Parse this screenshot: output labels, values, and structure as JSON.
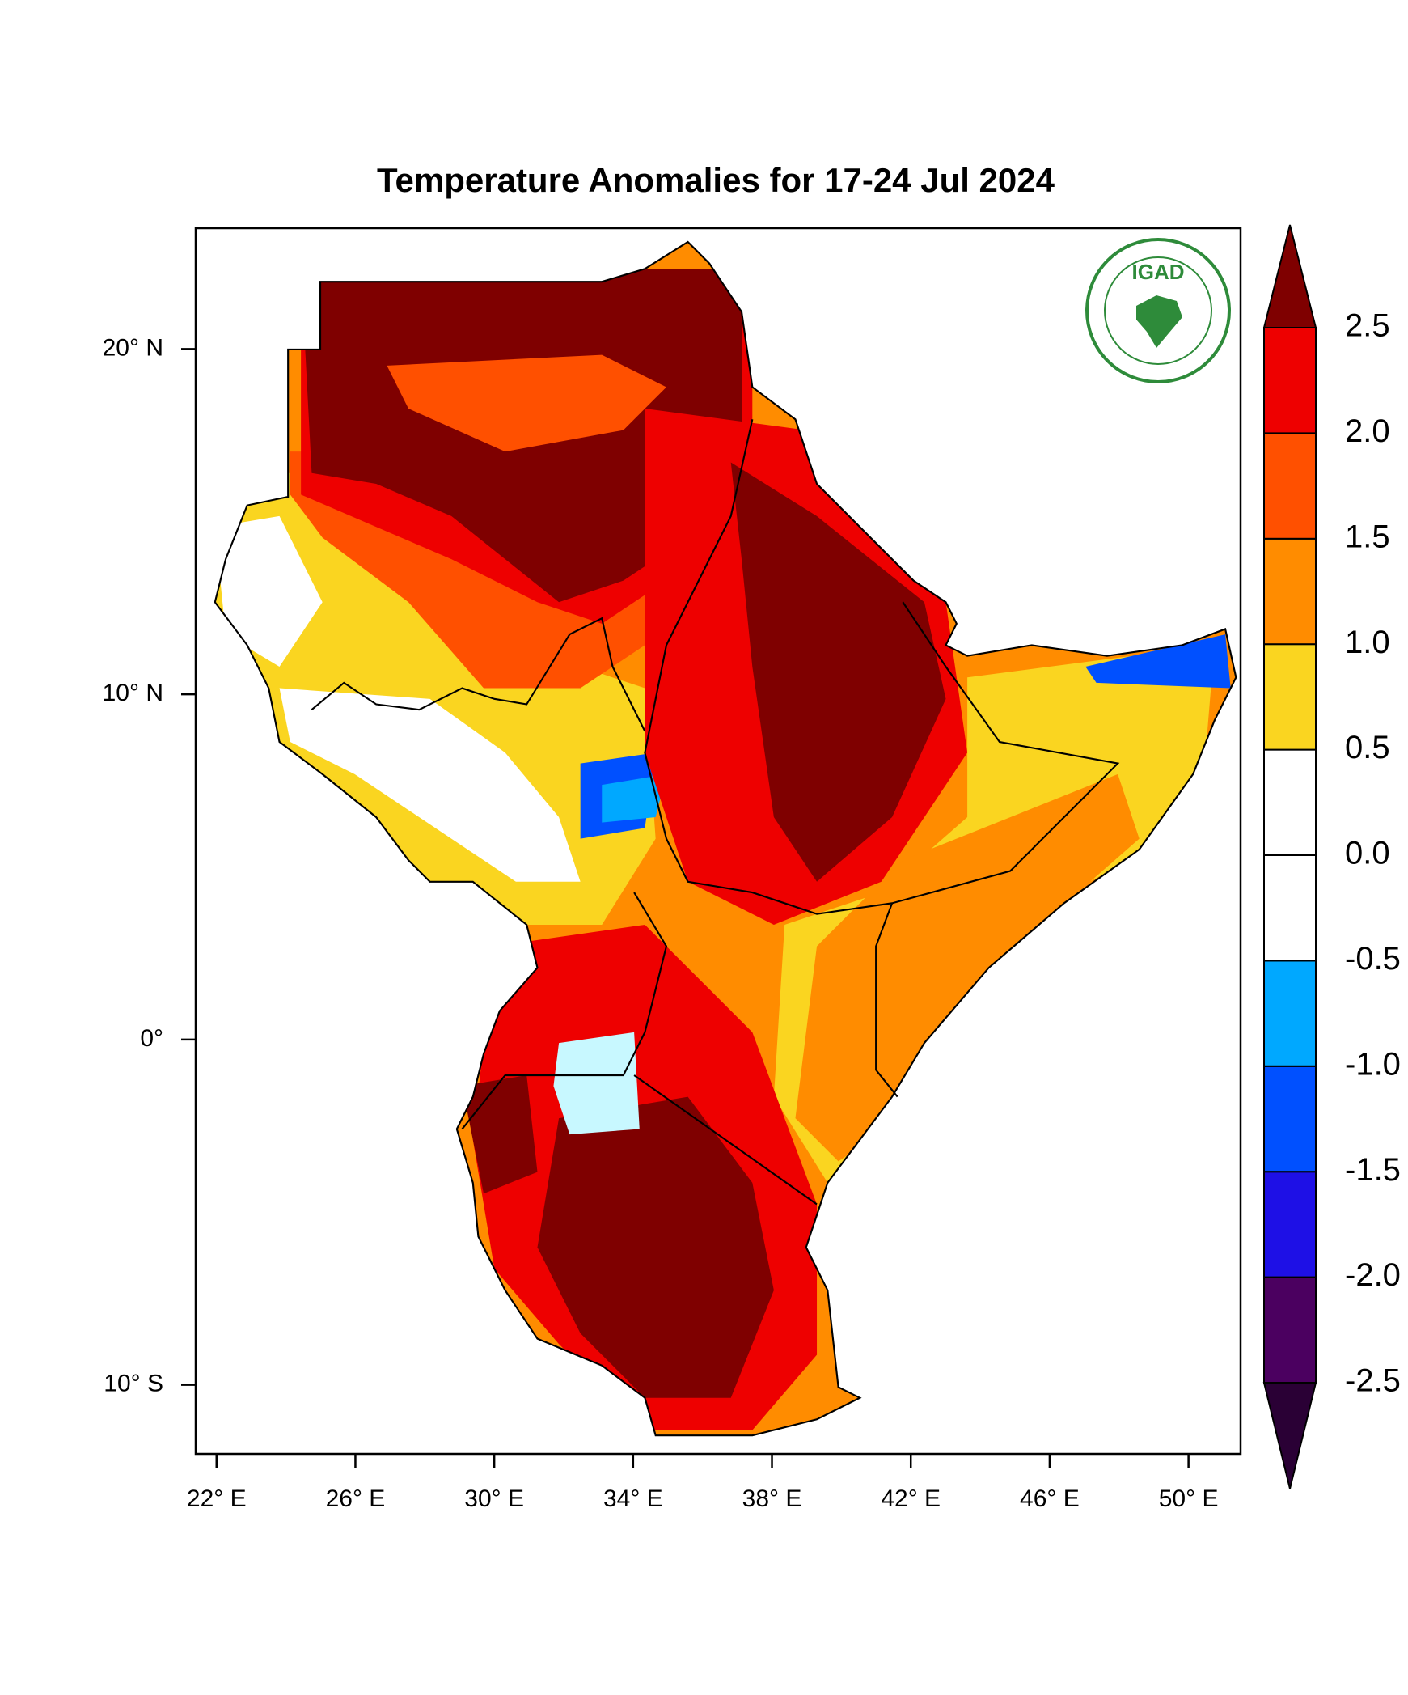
{
  "title": "Temperature Anomalies for 17-24 Jul 2024",
  "map": {
    "xlim": [
      21.4,
      51.5
    ],
    "ylim": [
      -12,
      23.5
    ],
    "xticks": [
      {
        "value": 22,
        "label": "22° E"
      },
      {
        "value": 26,
        "label": "26° E"
      },
      {
        "value": 30,
        "label": "30° E"
      },
      {
        "value": 34,
        "label": "34° E"
      },
      {
        "value": 38,
        "label": "38° E"
      },
      {
        "value": 42,
        "label": "42° E"
      },
      {
        "value": 46,
        "label": "46° E"
      },
      {
        "value": 50,
        "label": "50° E"
      }
    ],
    "yticks": [
      {
        "value": 20,
        "label": "20° N"
      },
      {
        "value": 10,
        "label": "10° N"
      },
      {
        "value": 0,
        "label": "0°"
      },
      {
        "value": -10,
        "label": "10° S"
      }
    ]
  },
  "colorbar": {
    "levels": [
      -2.5,
      {
        "value": -2,
        "label": "-2.0"
      },
      -1.5,
      {
        "value": -1,
        "label": "-1.0"
      },
      -0.5,
      {
        "value": 0,
        "label": "0.0"
      },
      0.5,
      {
        "value": 1,
        "label": "1.0"
      },
      1.5,
      {
        "value": 2,
        "label": "2.0"
      },
      2.5
    ],
    "colors": [
      "#2a0035",
      "#4b0060",
      "#1e10e6",
      "#0050ff",
      "#00a8ff",
      "#ffffff",
      "#ffffff",
      "#fad520",
      "#ff8c00",
      "#ff5000",
      "#ee0000",
      "#7f0000"
    ]
  },
  "logo": {
    "text": "IGAD"
  }
}
